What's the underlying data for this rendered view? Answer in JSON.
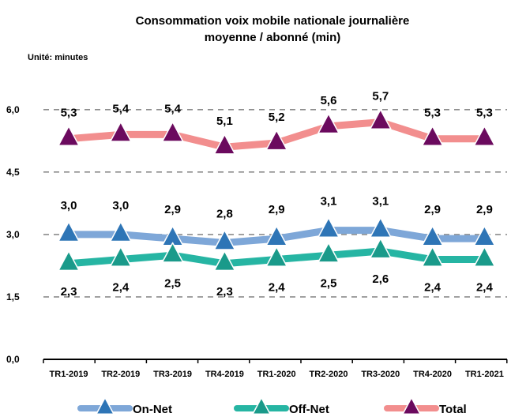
{
  "chart_data": {
    "type": "line",
    "title_line1": "Consommation voix mobile  nationale journalière",
    "title_line2": "moyenne / abonné (min)",
    "unit_label": "Unité: minutes",
    "categories": [
      "TR1-2019",
      "TR2-2019",
      "TR3-2019",
      "TR4-2019",
      "TR1-2020",
      "TR2-2020",
      "TR3-2020",
      "TR4-2020",
      "TR1-2021"
    ],
    "yticks": [
      "0,0",
      "1,5",
      "3,0",
      "4,5",
      "6,0"
    ],
    "ylim": [
      0,
      6.5
    ],
    "grid": "dashed horizontal",
    "legend_position": "bottom",
    "series": [
      {
        "name": "On-Net",
        "color": "#7ea7d8",
        "marker_color": "#2e75b6",
        "values": [
          3.0,
          3.0,
          2.9,
          2.8,
          2.9,
          3.1,
          3.1,
          2.9,
          2.9
        ],
        "labels": [
          "3,0",
          "3,0",
          "2,9",
          "2,8",
          "2,9",
          "3,1",
          "3,1",
          "2,9",
          "2,9"
        ]
      },
      {
        "name": "Off-Net",
        "color": "#26b5a3",
        "marker_color": "#1a9a8a",
        "values": [
          2.3,
          2.4,
          2.5,
          2.3,
          2.4,
          2.5,
          2.6,
          2.4,
          2.4
        ],
        "labels": [
          "2,3",
          "2,4",
          "2,5",
          "2,3",
          "2,4",
          "2,5",
          "2,6",
          "2,4",
          "2,4"
        ]
      },
      {
        "name": "Total",
        "color": "#f28e8e",
        "marker_color": "#6b0a5e",
        "values": [
          5.3,
          5.4,
          5.4,
          5.1,
          5.2,
          5.6,
          5.7,
          5.3,
          5.3
        ],
        "labels": [
          "5,3",
          "5,4",
          "5,4",
          "5,1",
          "5,2",
          "5,6",
          "5,7",
          "5,3",
          "5,3"
        ]
      }
    ]
  }
}
